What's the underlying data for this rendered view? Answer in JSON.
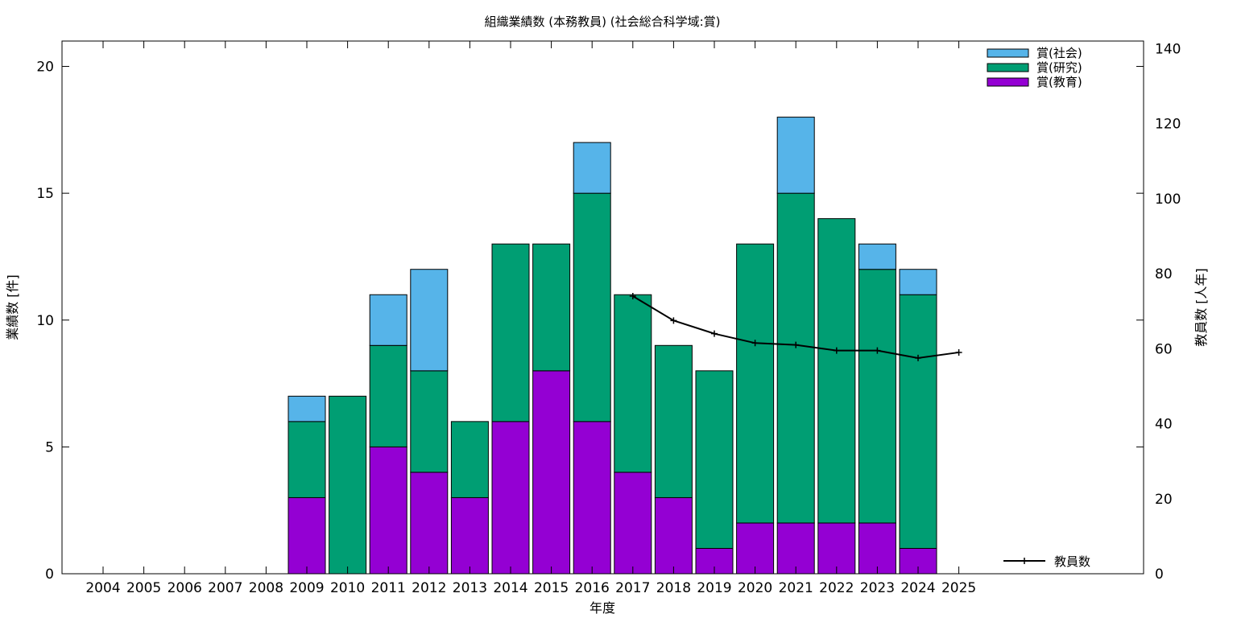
{
  "chart_data": {
    "type": "bar",
    "stacked": true,
    "title": "組織業績数 (本務教員) (社会総合科学域:賞)",
    "xlabel": "年度",
    "ylabel": "業績数 [件]",
    "y2label": "教員数 [人年]",
    "categories": [
      "2004",
      "2005",
      "2006",
      "2007",
      "2008",
      "2009",
      "2010",
      "2011",
      "2012",
      "2013",
      "2014",
      "2015",
      "2016",
      "2017",
      "2018",
      "2019",
      "2020",
      "2021",
      "2022",
      "2023",
      "2024",
      "2025"
    ],
    "ylim": [
      0,
      21
    ],
    "y2lim": [
      0,
      142
    ],
    "yticks": [
      0,
      5,
      10,
      15,
      20
    ],
    "y2ticks": [
      0,
      20,
      40,
      60,
      80,
      100,
      120,
      140
    ],
    "legend_position": "top-right",
    "series": [
      {
        "name": "賞(教育)",
        "color": "#9400d3",
        "values": [
          0,
          0,
          0,
          0,
          0,
          3,
          0,
          5,
          4,
          3,
          6,
          8,
          6,
          4,
          3,
          1,
          2,
          2,
          2,
          2,
          1,
          0
        ]
      },
      {
        "name": "賞(研究)",
        "color": "#009e73",
        "values": [
          0,
          0,
          0,
          0,
          0,
          3,
          7,
          4,
          4,
          3,
          7,
          5,
          9,
          7,
          6,
          7,
          11,
          13,
          12,
          10,
          10,
          0
        ]
      },
      {
        "name": "賞(社会)",
        "color": "#56b4e9",
        "values": [
          0,
          0,
          0,
          0,
          0,
          1,
          0,
          2,
          4,
          0,
          0,
          0,
          2,
          0,
          0,
          0,
          0,
          3,
          0,
          1,
          1,
          0
        ]
      }
    ],
    "line_series": {
      "name": "教員数",
      "color": "#000000",
      "axis": "y2",
      "x": [
        "2017",
        "2018",
        "2019",
        "2020",
        "2021",
        "2022",
        "2023",
        "2024",
        "2025"
      ],
      "values": [
        74,
        67.5,
        64,
        61.5,
        61,
        59.5,
        59.5,
        57.5,
        59
      ]
    }
  }
}
